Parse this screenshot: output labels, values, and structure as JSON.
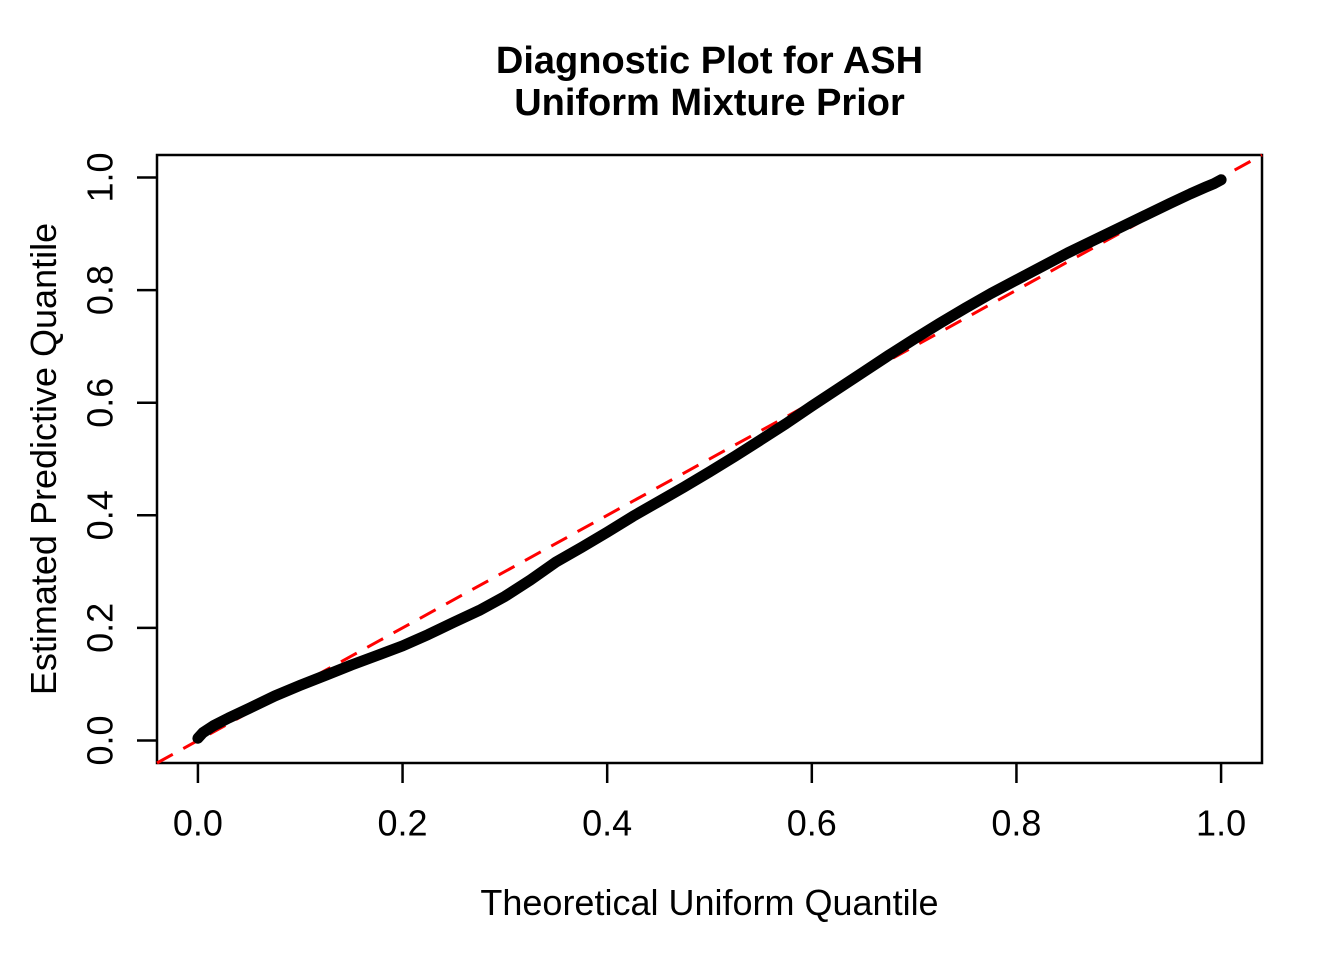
{
  "figure": {
    "title_line1": "Diagnostic Plot for ASH",
    "title_line2": "Uniform Mixture Prior",
    "xlabel": "Theoretical Uniform Quantile",
    "ylabel": "Estimated Predictive Quantile"
  },
  "colors": {
    "background": "#FFFFFF",
    "axis": "#000000",
    "curve": "#000000",
    "reference_line": "#FF0000"
  },
  "chart_data": {
    "type": "line",
    "title": "Diagnostic Plot for ASH\nUniform Mixture Prior",
    "xlabel": "Theoretical Uniform Quantile",
    "ylabel": "Estimated Predictive Quantile",
    "xlim": [
      0.0,
      1.0
    ],
    "ylim": [
      0.0,
      1.0
    ],
    "grid": false,
    "legend": "none",
    "x_ticks": [
      0.0,
      0.2,
      0.4,
      0.6,
      0.8,
      1.0
    ],
    "y_ticks": [
      0.0,
      0.2,
      0.4,
      0.6,
      0.8,
      1.0
    ],
    "x_tick_labels": [
      "0.0",
      "0.2",
      "0.4",
      "0.6",
      "0.8",
      "1.0"
    ],
    "y_tick_labels": [
      "0.0",
      "0.2",
      "0.4",
      "0.6",
      "0.8",
      "1.0"
    ],
    "series": [
      {
        "name": "estimated-predictive-quantile-curve",
        "style": "dense-points-thick-line",
        "color": "#000000",
        "points": [
          [
            0.0,
            0.004
          ],
          [
            0.005,
            0.014
          ],
          [
            0.015,
            0.026
          ],
          [
            0.03,
            0.04
          ],
          [
            0.05,
            0.057
          ],
          [
            0.075,
            0.079
          ],
          [
            0.1,
            0.098
          ],
          [
            0.125,
            0.116
          ],
          [
            0.15,
            0.134
          ],
          [
            0.175,
            0.151
          ],
          [
            0.2,
            0.168
          ],
          [
            0.225,
            0.188
          ],
          [
            0.25,
            0.21
          ],
          [
            0.275,
            0.231
          ],
          [
            0.3,
            0.256
          ],
          [
            0.325,
            0.285
          ],
          [
            0.35,
            0.317
          ],
          [
            0.375,
            0.343
          ],
          [
            0.4,
            0.37
          ],
          [
            0.425,
            0.398
          ],
          [
            0.45,
            0.424
          ],
          [
            0.475,
            0.45
          ],
          [
            0.5,
            0.477
          ],
          [
            0.525,
            0.505
          ],
          [
            0.55,
            0.534
          ],
          [
            0.575,
            0.563
          ],
          [
            0.6,
            0.594
          ],
          [
            0.625,
            0.624
          ],
          [
            0.65,
            0.654
          ],
          [
            0.675,
            0.684
          ],
          [
            0.7,
            0.713
          ],
          [
            0.725,
            0.741
          ],
          [
            0.75,
            0.768
          ],
          [
            0.775,
            0.794
          ],
          [
            0.8,
            0.818
          ],
          [
            0.825,
            0.842
          ],
          [
            0.85,
            0.866
          ],
          [
            0.875,
            0.888
          ],
          [
            0.9,
            0.91
          ],
          [
            0.925,
            0.932
          ],
          [
            0.95,
            0.954
          ],
          [
            0.97,
            0.971
          ],
          [
            0.985,
            0.983
          ],
          [
            0.993,
            0.989
          ],
          [
            1.0,
            0.996
          ]
        ]
      },
      {
        "name": "reference-line-y-equals-x",
        "style": "dashed",
        "color": "#FF0000",
        "intercept": 0,
        "slope": 1
      }
    ]
  }
}
